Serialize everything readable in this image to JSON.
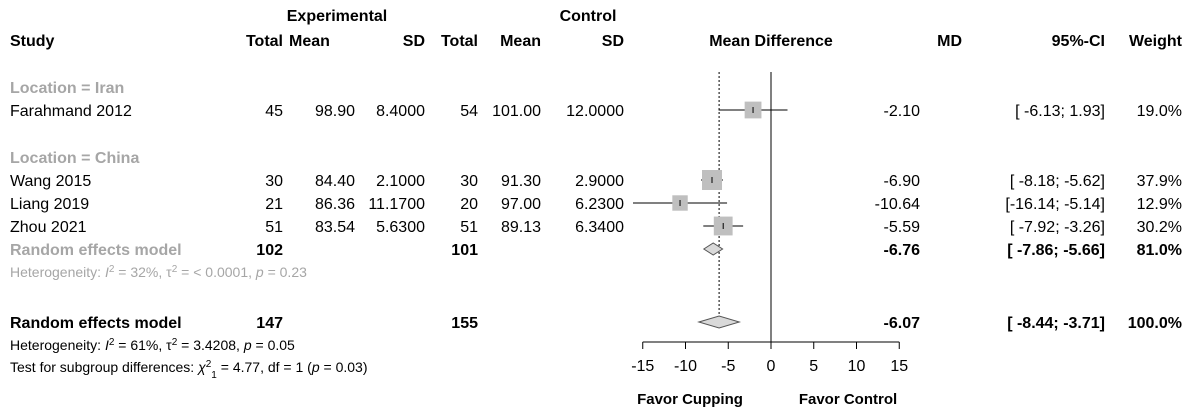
{
  "chart_data": {
    "type": "forest",
    "headers": {
      "study": "Study",
      "exp_group": "Experimental",
      "ctrl_group": "Control",
      "total": "Total",
      "mean": "Mean",
      "sd": "SD",
      "effect": "Mean Difference",
      "md": "MD",
      "ci": "95%-CI",
      "weight": "Weight"
    },
    "subgroups": [
      {
        "label": "Location = Iran",
        "studies": [
          {
            "study": "Farahmand  2012",
            "exp_total": "45",
            "exp_mean": "98.90",
            "exp_sd": "8.4000",
            "ctrl_total": "54",
            "ctrl_mean": "101.00",
            "ctrl_sd": "12.0000",
            "md": -2.1,
            "lo": -6.13,
            "hi": 1.93,
            "md_text": "-2.10",
            "ci_text": "[ -6.13;  1.93]",
            "weight_text": "19.0%"
          }
        ]
      },
      {
        "label": "Location = China",
        "studies": [
          {
            "study": "Wang 2015",
            "exp_total": "30",
            "exp_mean": "84.40",
            "exp_sd": "2.1000",
            "ctrl_total": "30",
            "ctrl_mean": "91.30",
            "ctrl_sd": "2.9000",
            "md": -6.9,
            "lo": -8.18,
            "hi": -5.62,
            "md_text": "-6.90",
            "ci_text": "[ -8.18; -5.62]",
            "weight_text": "37.9%"
          },
          {
            "study": "Liang  2019",
            "exp_total": "21",
            "exp_mean": "86.36",
            "exp_sd": "11.1700",
            "ctrl_total": "20",
            "ctrl_mean": "97.00",
            "ctrl_sd": "6.2300",
            "md": -10.64,
            "lo": -16.14,
            "hi": -5.14,
            "md_text": "-10.64",
            "ci_text": "[-16.14; -5.14]",
            "weight_text": "12.9%"
          },
          {
            "study": "Zhou 2021",
            "exp_total": "51",
            "exp_mean": "83.54",
            "exp_sd": "5.6300",
            "ctrl_total": "51",
            "ctrl_mean": "89.13",
            "ctrl_sd": "6.3400",
            "md": -5.59,
            "lo": -7.92,
            "hi": -3.26,
            "md_text": "-5.59",
            "ci_text": "[ -7.92; -3.26]",
            "weight_text": "30.2%"
          }
        ],
        "pooled": {
          "label": "Random effects model",
          "exp_total": "102",
          "ctrl_total": "101",
          "md": -6.76,
          "lo": -7.86,
          "hi": -5.66,
          "md_text": "-6.76",
          "ci_text": "[ -7.86; -5.66]",
          "weight_text": "81.0%"
        },
        "heterogeneity": {
          "prefix": "Heterogeneity: ",
          "i2": "I",
          "i2_val": " = 32%, ",
          "tau": "τ",
          "tau_val": " = < 0.0001, ",
          "p": "p",
          "p_val": " = 0.23"
        }
      }
    ],
    "overall": {
      "label": "Random effects model",
      "exp_total": "147",
      "ctrl_total": "155",
      "md": -6.07,
      "lo": -8.44,
      "hi": -3.71,
      "md_text": "-6.07",
      "ci_text": "[ -8.44; -3.71]",
      "weight_text": "100.0%"
    },
    "overall_heterogeneity": {
      "prefix": "Heterogeneity: ",
      "i2": "I",
      "i2_val": " = 61%, ",
      "tau": "τ",
      "tau_val": " = 3.4208, ",
      "p": "p",
      "p_val": " = 0.05"
    },
    "subgroup_test": {
      "prefix": "Test for subgroup differences: ",
      "chi": "χ",
      "chi_val": " = 4.77, df = 1 (",
      "p": "p",
      "p_val": " = 0.03)"
    },
    "x_axis": {
      "ticks": [
        "-15",
        "-10",
        "-5",
        "0",
        "5",
        "10",
        "15"
      ],
      "tick_values": [
        -15,
        -10,
        -5,
        0,
        5,
        10,
        15
      ],
      "range": [
        -15,
        15
      ],
      "reference_line": 0
    },
    "favor_left": "Favor Cupping",
    "favor_right": "Favor Control"
  }
}
